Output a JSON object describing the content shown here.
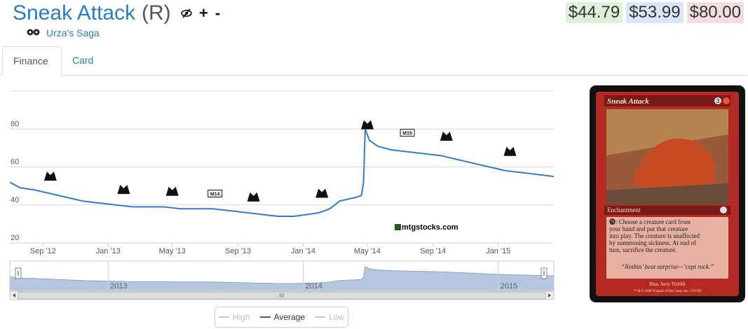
{
  "header": {
    "card_name": "Sneak Attack",
    "rarity": "(R)",
    "set_name": "Urza's Saga",
    "icons": [
      "eye-slash-icon",
      "plus-icon",
      "minus-icon"
    ],
    "plus_label": "+",
    "minus_label": "-"
  },
  "prices": {
    "low": "$44.79",
    "average": "$53.99",
    "high": "$80.00",
    "colors": {
      "low": "#dff0d8",
      "average": "#d9e6f7",
      "high": "#f2dede"
    }
  },
  "tabs": [
    {
      "label": "Finance",
      "active": true
    },
    {
      "label": "Card",
      "active": false
    }
  ],
  "watermark": "mtgstocks.com",
  "chart_data": {
    "type": "line",
    "y_ticks": [
      "20",
      "40",
      "60",
      "80"
    ],
    "ylim": [
      20,
      100
    ],
    "x_tick_labels": [
      "Sep '12",
      "Jan '13",
      "May '13",
      "Sep '13",
      "Jan '14",
      "May '14",
      "Sep '14",
      "Jan '15"
    ],
    "x_ticks": [
      "2012-09-01",
      "2013-01-01",
      "2013-05-01",
      "2013-09-01",
      "2014-01-01",
      "2014-05-01",
      "2014-09-01",
      "2015-01-01"
    ],
    "xlim": [
      "2012-07-01",
      "2015-04-15"
    ],
    "series": [
      {
        "name": "Average",
        "color": "#3a7bc8",
        "x": [
          "2012-07-01",
          "2012-07-20",
          "2012-08-15",
          "2012-09-15",
          "2012-10-15",
          "2012-11-15",
          "2012-12-15",
          "2013-01-15",
          "2013-02-15",
          "2013-03-15",
          "2013-04-15",
          "2013-05-15",
          "2013-06-15",
          "2013-07-15",
          "2013-08-15",
          "2013-09-15",
          "2013-10-15",
          "2013-11-15",
          "2013-12-15",
          "2014-01-10",
          "2014-02-01",
          "2014-02-20",
          "2014-03-10",
          "2014-03-25",
          "2014-04-10",
          "2014-04-20",
          "2014-04-24",
          "2014-04-27",
          "2014-05-05",
          "2014-05-20",
          "2014-06-15",
          "2014-07-15",
          "2014-08-15",
          "2014-09-15",
          "2014-10-15",
          "2014-11-15",
          "2014-12-15",
          "2015-01-15",
          "2015-02-15",
          "2015-03-15",
          "2015-04-15"
        ],
        "values": [
          52,
          49,
          48,
          46,
          44,
          42,
          41,
          40,
          39,
          39,
          39,
          38,
          38,
          38,
          37,
          36,
          35,
          34,
          34,
          35,
          36,
          38,
          42,
          43,
          44,
          45,
          52,
          80,
          74,
          71,
          69,
          68,
          67,
          66,
          64,
          62,
          60,
          58,
          57,
          56,
          55
        ]
      }
    ],
    "annotations": [
      {
        "date": "2012-09-15",
        "value": 55,
        "icon": "return-to-ravnica-set-icon"
      },
      {
        "date": "2013-01-30",
        "value": 48,
        "icon": "gatecrash-set-icon"
      },
      {
        "date": "2013-05-01",
        "value": 47,
        "icon": "dragons-maze-set-icon"
      },
      {
        "date": "2013-07-20",
        "value": 46,
        "icon": "magic-2014-set-icon",
        "label": "M14"
      },
      {
        "date": "2013-09-30",
        "value": 44,
        "icon": "theros-set-icon"
      },
      {
        "date": "2014-02-05",
        "value": 46,
        "icon": "born-of-the-gods-set-icon"
      },
      {
        "date": "2014-05-01",
        "value": 82,
        "icon": "journey-into-nyx-set-icon"
      },
      {
        "date": "2014-07-15",
        "value": 78,
        "icon": "magic-2015-set-icon",
        "label": "M15"
      },
      {
        "date": "2014-09-26",
        "value": 76,
        "icon": "khans-of-tarkir-set-icon"
      },
      {
        "date": "2015-01-23",
        "value": 68,
        "icon": "fate-reforged-set-icon"
      }
    ],
    "navigator": {
      "labels": [
        "2013",
        "2014",
        "2015"
      ],
      "label_dates": [
        "2013-01-01",
        "2014-01-01",
        "2015-01-01"
      ],
      "scrollbar_glyph": "III"
    },
    "legend": [
      {
        "label": "High",
        "color": "#cccccc",
        "enabled": false
      },
      {
        "label": "Average",
        "color": "#2f5f8f",
        "enabled": true
      },
      {
        "label": "Low",
        "color": "#cccccc",
        "enabled": false
      }
    ]
  },
  "card_image": {
    "name": "Sneak Attack",
    "mana_cost": "3",
    "type_line": "Enchantment",
    "rules_text_lines": [
      "⓯: Choose a creature card from",
      "your hand and put that creature",
      "into play. The creature is unaffected",
      "by summoning sickness. At end of",
      "turn, sacrifice the creature."
    ],
    "flavor_text": "“Nothin’ beat surprise—’cept rock.”",
    "artist_line": "Illus. Jerry Tiritilli",
    "copyright_line": "™ & © 1998 Wizards of the Coast, Inc. 176/350",
    "frame_color": "#b42a22"
  }
}
